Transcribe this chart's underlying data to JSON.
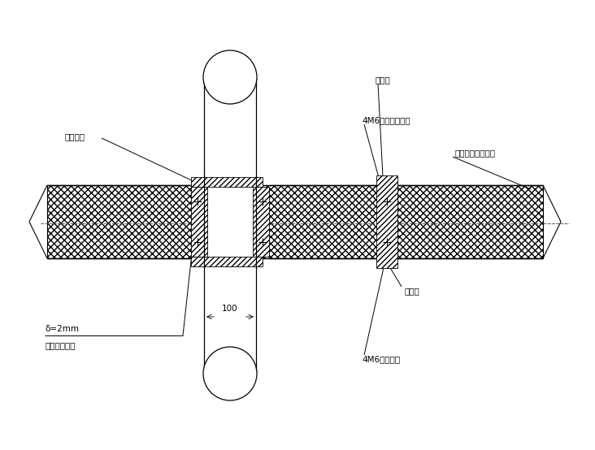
{
  "bg_color": "#ffffff",
  "line_color": "#000000",
  "fig_width": 7.32,
  "fig_height": 5.54,
  "dpi": 100,
  "labels": {
    "mi_feng_ban_top": "密封板",
    "4M6_self_tap_top": "4M6自攻沉头螺丝",
    "composite_board": "彩色型金属复合板",
    "rubber_gasket": "橡胶垃圈",
    "mi_feng_ban_bot": "密封板",
    "4M6_self_screw_bot": "4M6自攻螺丝",
    "thickness": "δ=2mm",
    "flange": "不锈锥法兰板",
    "dim_100": "100"
  }
}
